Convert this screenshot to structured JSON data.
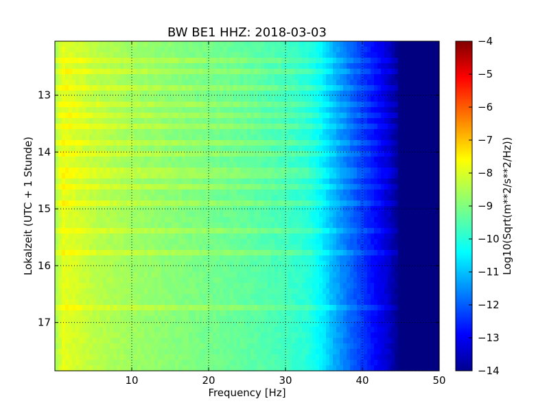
{
  "chart_data": {
    "type": "heatmap",
    "title": "BW BE1 HHZ: 2018-03-03",
    "xlabel": "Frequency [Hz]",
    "ylabel": "Lokalzeit (UTC + 1 Stunde)",
    "xlim": [
      0,
      50
    ],
    "ylim": [
      17.85,
      12.05
    ],
    "x_ticks": [
      10,
      20,
      30,
      40,
      50
    ],
    "y_ticks": [
      13,
      14,
      15,
      16,
      17
    ],
    "grid": true,
    "colormap": "jet",
    "colorbar": {
      "label": "Log10(Sqrt(m**2/s**2/Hz))",
      "range": [
        -14,
        -4
      ],
      "ticks": [
        -4,
        -5,
        -6,
        -7,
        -8,
        -9,
        -10,
        -11,
        -12,
        -13,
        -14
      ]
    },
    "spectrum_profile": {
      "frequency_hz": [
        0,
        1,
        3,
        5,
        10,
        15,
        20,
        25,
        30,
        33,
        34.5,
        36,
        38,
        40,
        42,
        43.5,
        44.5,
        45,
        50
      ],
      "log10_amplitude": [
        -8.7,
        -8.0,
        -8.2,
        -8.4,
        -8.7,
        -8.9,
        -9.1,
        -9.3,
        -9.6,
        -9.9,
        -10.3,
        -10.9,
        -11.6,
        -12.2,
        -12.8,
        -13.3,
        -13.8,
        -14.0,
        -14.0
      ]
    },
    "high_amplitude_bands_hour": [
      12.38,
      12.6,
      12.9,
      13.2,
      13.4,
      13.55,
      13.8,
      14.05,
      14.3,
      14.45,
      14.6,
      14.95,
      15.4,
      15.8,
      16.7
    ]
  }
}
